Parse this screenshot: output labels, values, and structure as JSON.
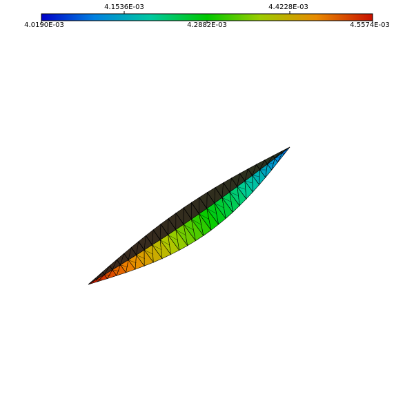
{
  "colorbar": {
    "top_labels": [
      "4.1536E-03",
      "4.4228E-03"
    ],
    "bottom_labels": [
      "4.0190E-03",
      "4.2882E-03",
      "4.5574E-03"
    ],
    "colormap": [
      "#0000c8",
      "#0088dd",
      "#00cc99",
      "#00cc00",
      "#aacc00",
      "#ee8800",
      "#cc1100"
    ]
  },
  "mesh": {
    "edge_color": "#000000",
    "low_color": "#2f86d8",
    "mid_color": "#22c400",
    "high_color": "#c81400"
  }
}
